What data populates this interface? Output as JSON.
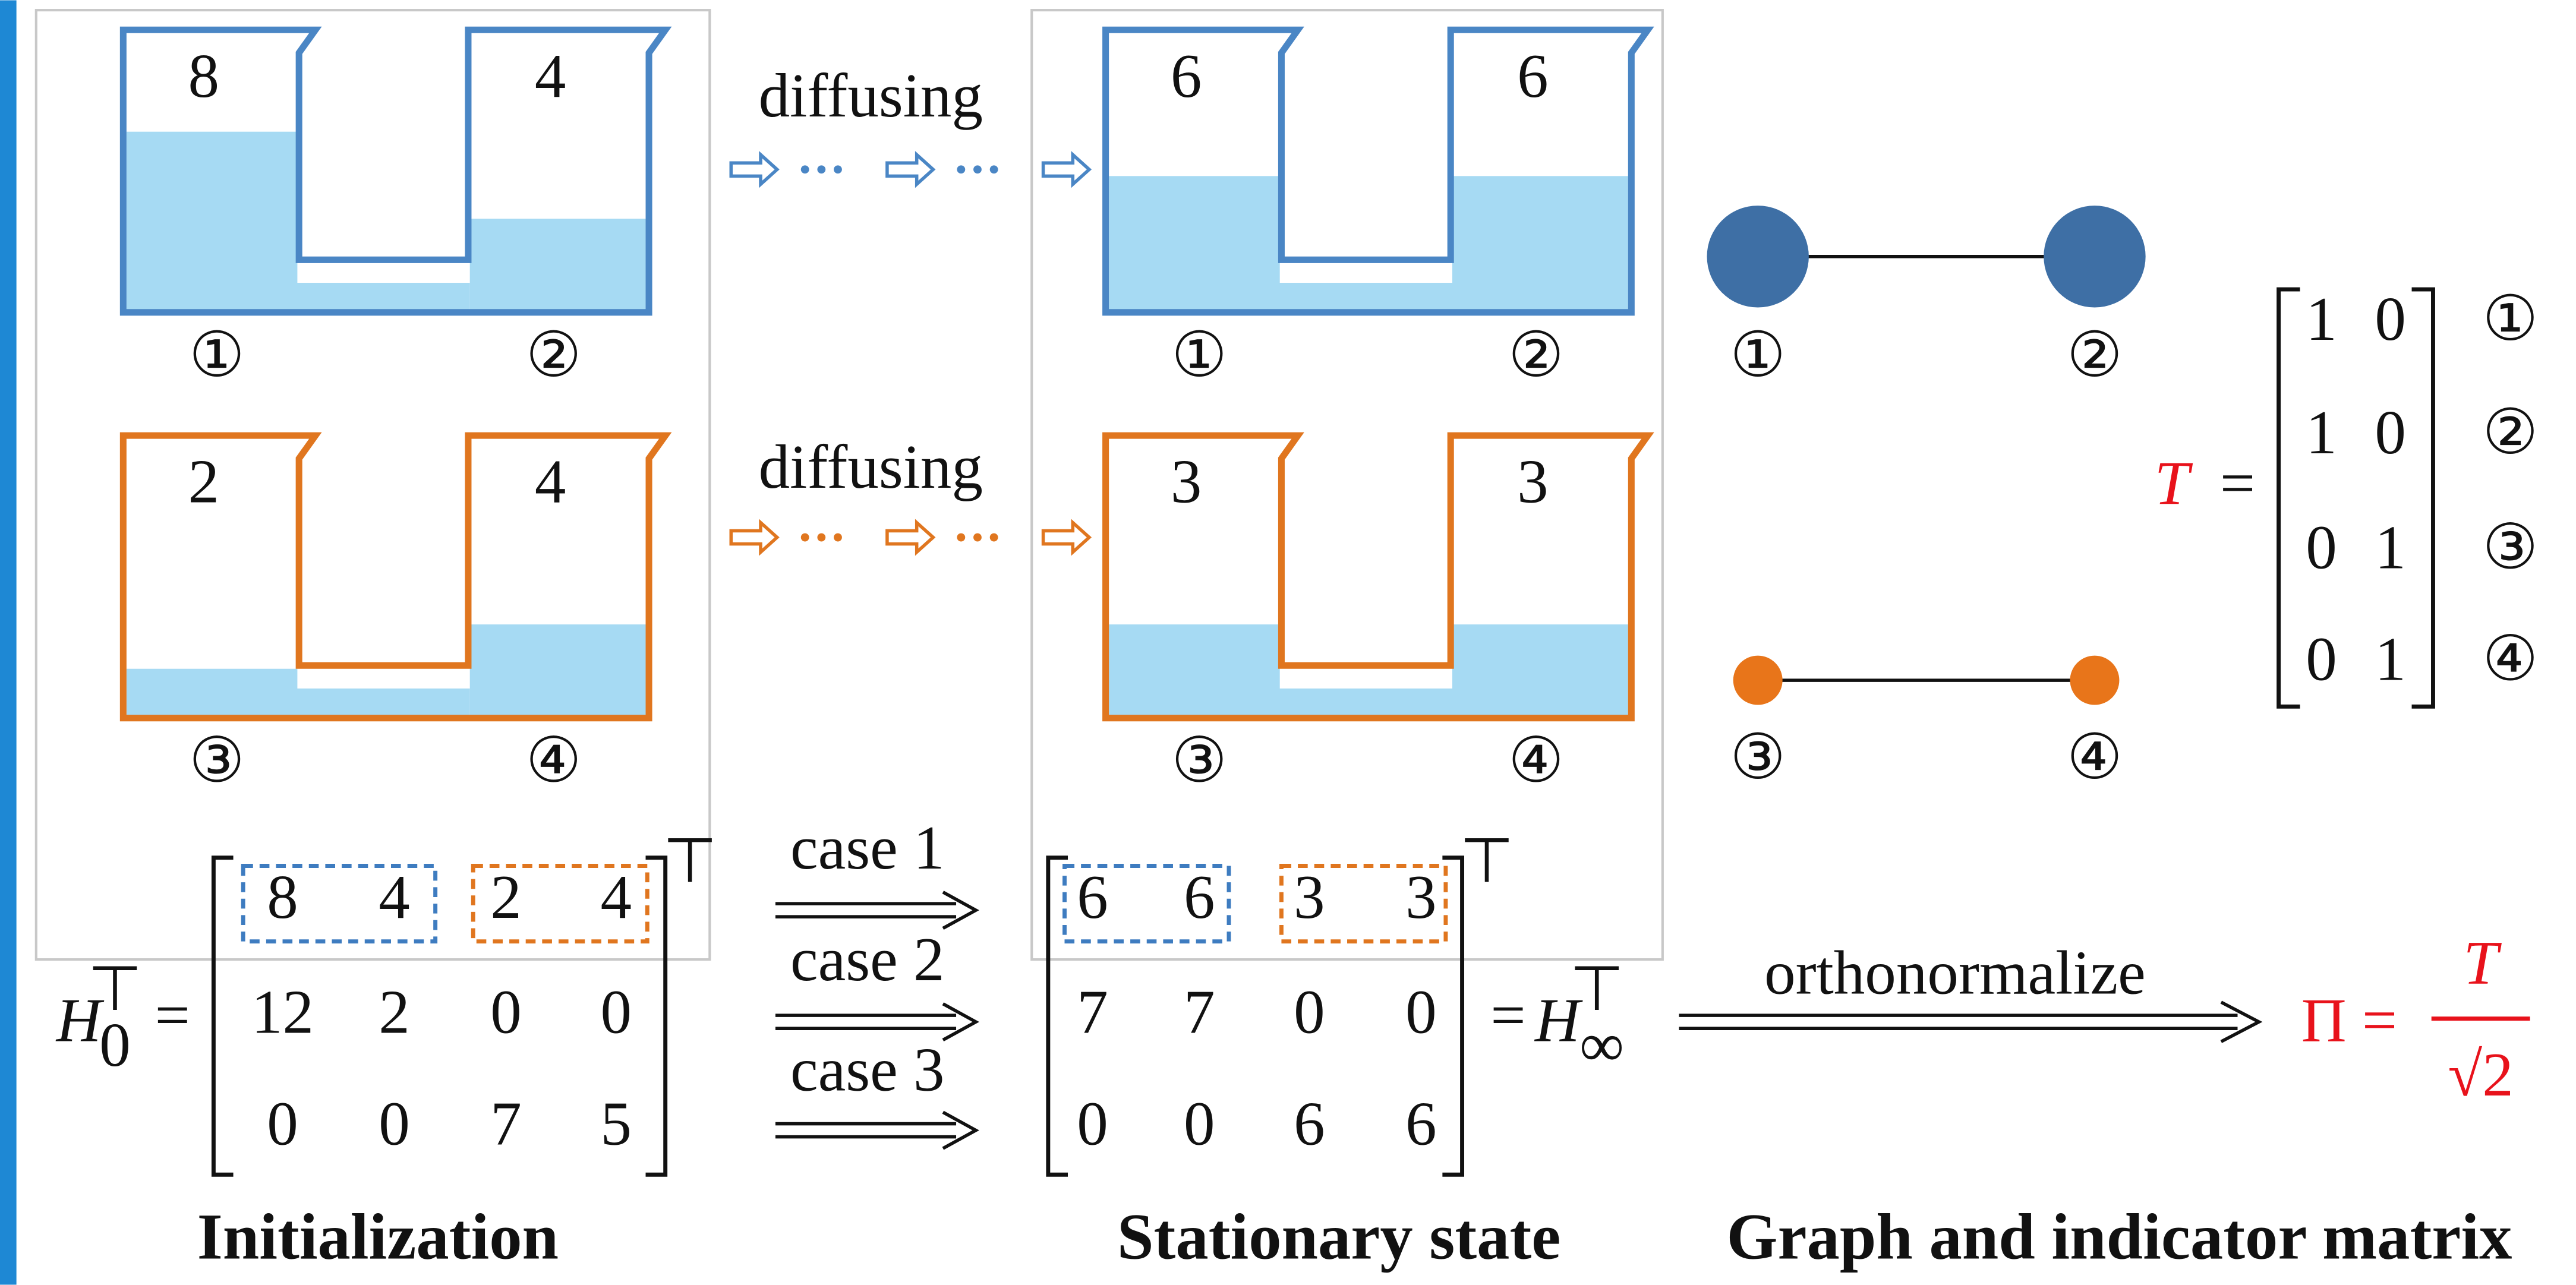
{
  "panels": {
    "initialization": {
      "caption": "Initialization",
      "blue_pair": {
        "levels": [
          "8",
          "4"
        ],
        "nodes": [
          "①",
          "②"
        ]
      },
      "orange_pair": {
        "levels": [
          "2",
          "4"
        ],
        "nodes": [
          "③",
          "④"
        ]
      }
    },
    "stationary": {
      "caption": "Stationary state",
      "blue_pair": {
        "levels": [
          "6",
          "6"
        ],
        "nodes": [
          "①",
          "②"
        ]
      },
      "orange_pair": {
        "levels": [
          "3",
          "3"
        ],
        "nodes": [
          "③",
          "④"
        ]
      }
    }
  },
  "arrows": {
    "blue": "diffusing",
    "orange": "diffusing"
  },
  "h0": {
    "base": "H",
    "sub": "0",
    "sup": "⊤",
    "eq": "=",
    "rows": [
      [
        "8",
        "4",
        "2",
        "4"
      ],
      [
        "12",
        "2",
        "0",
        "0"
      ],
      [
        "0",
        "0",
        "7",
        "5"
      ]
    ],
    "transpose": "⊤"
  },
  "cases": [
    "case 1",
    "case 2",
    "case 3"
  ],
  "h_inf": {
    "rows": [
      [
        "6",
        "6",
        "3",
        "3"
      ],
      [
        "7",
        "7",
        "0",
        "0"
      ],
      [
        "0",
        "0",
        "6",
        "6"
      ]
    ],
    "transpose": "⊤",
    "eq": "=",
    "base": "H",
    "sub": "∞",
    "sup": "⊤"
  },
  "orthonormalize": "orthonormalize",
  "pi": {
    "lhs": "Π =",
    "num": "T",
    "den": "√2"
  },
  "graph": {
    "caption": "Graph and indicator matrix",
    "nodes": [
      "①",
      "②",
      "③",
      "④"
    ]
  },
  "t_matrix": {
    "name": "T",
    "eq": "=",
    "rows": [
      [
        "1",
        "0"
      ],
      [
        "1",
        "0"
      ],
      [
        "0",
        "1"
      ],
      [
        "0",
        "1"
      ]
    ],
    "row_labels": [
      "①",
      "②",
      "③",
      "④"
    ]
  }
}
